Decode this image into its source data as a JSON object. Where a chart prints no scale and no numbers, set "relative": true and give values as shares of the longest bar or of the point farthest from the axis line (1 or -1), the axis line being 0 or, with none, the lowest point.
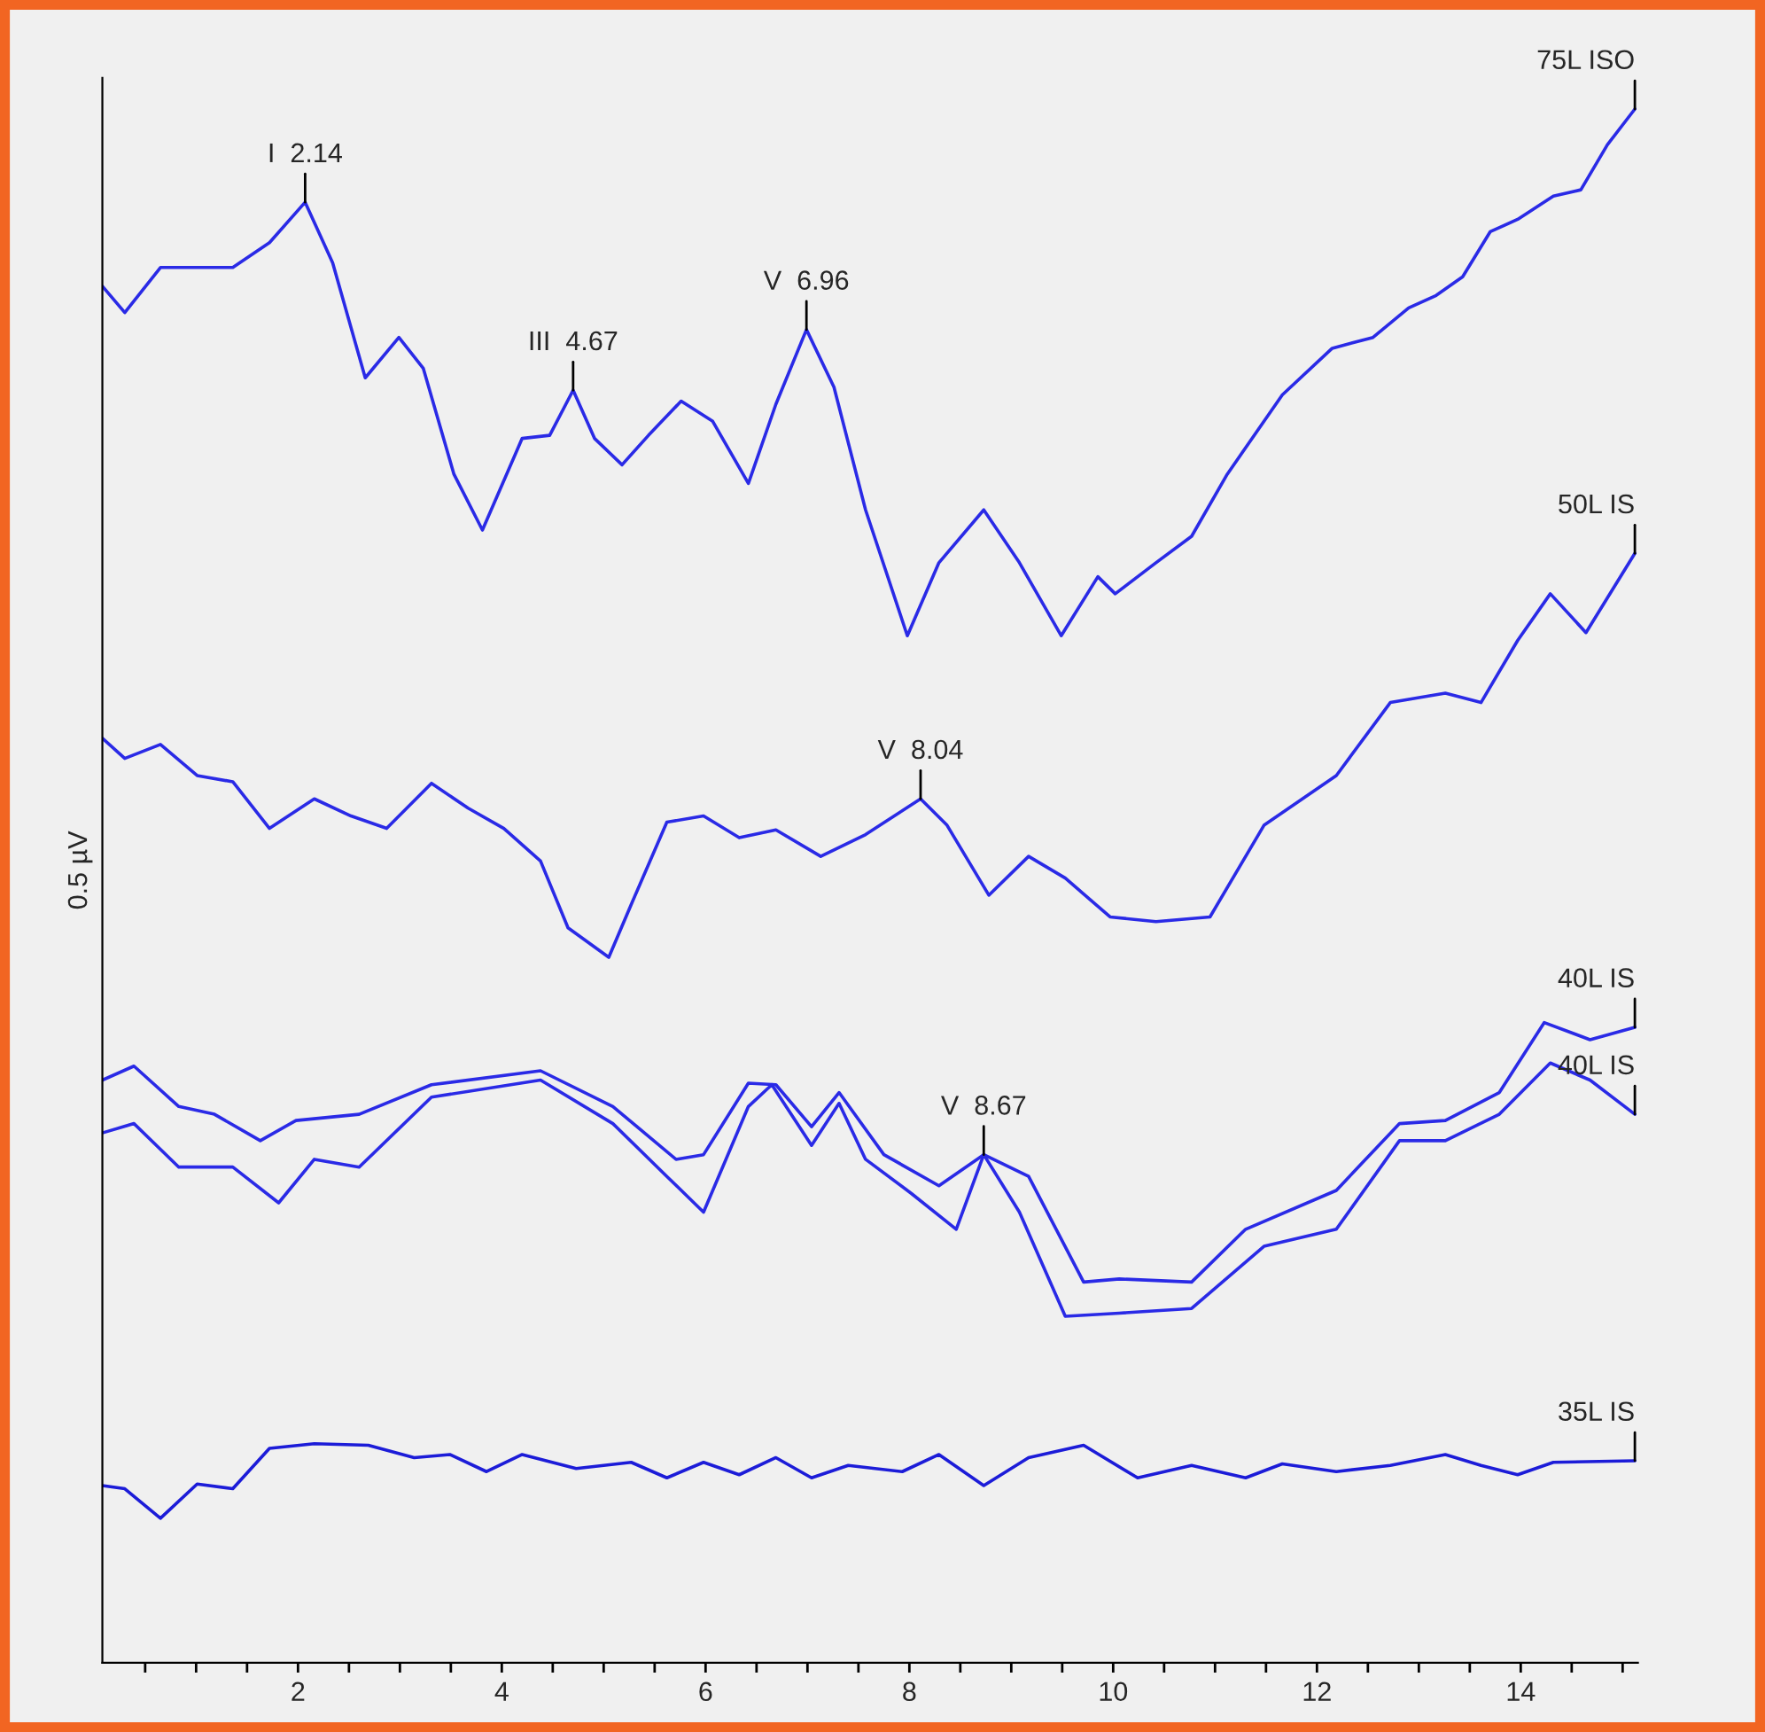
{
  "chart_data": {
    "type": "line",
    "relative": true,
    "ylabel": "0.5 µV",
    "xlim": [
      0.08,
      15.15
    ],
    "xticks": [
      {
        "value": 0.5,
        "label": null
      },
      {
        "value": 1,
        "label": null
      },
      {
        "value": 1.5,
        "label": null
      },
      2,
      {
        "value": 2.5,
        "label": null
      },
      {
        "value": 3,
        "label": null
      },
      {
        "value": 3.5,
        "label": null
      },
      4,
      {
        "value": 4.5,
        "label": null
      },
      {
        "value": 5,
        "label": null
      },
      {
        "value": 5.5,
        "label": null
      },
      6,
      {
        "value": 6.5,
        "label": null
      },
      {
        "value": 7,
        "label": null
      },
      {
        "value": 7.5,
        "label": null
      },
      8,
      {
        "value": 8.5,
        "label": null
      },
      {
        "value": 9,
        "label": null
      },
      {
        "value": 9.5,
        "label": null
      },
      10,
      {
        "value": 10.5,
        "label": null
      },
      {
        "value": 11,
        "label": null
      },
      {
        "value": 11.5,
        "label": null
      },
      12,
      {
        "value": 12.5,
        "label": null
      },
      {
        "value": 13,
        "label": null
      },
      {
        "value": 13.5,
        "label": null
      },
      14,
      {
        "value": 14.5,
        "label": null
      },
      {
        "value": 15,
        "label": null
      }
    ],
    "tick_labels": "x",
    "grid": false,
    "legend": false,
    "marker": "none",
    "line_style": "solid",
    "series": [
      {
        "name": "75L ISO",
        "color": "#2a2ae6",
        "x": [
          0.08,
          0.3,
          0.65,
          1.36,
          1.72,
          2.07,
          2.34,
          2.66,
          2.99,
          3.23,
          3.53,
          3.81,
          4.2,
          4.47,
          4.7,
          4.91,
          5.18,
          5.44,
          5.76,
          6.07,
          6.42,
          6.69,
          6.99,
          7.26,
          7.57,
          7.98,
          8.29,
          8.73,
          9.08,
          9.49,
          9.85,
          10.02,
          10.42,
          10.77,
          11.12,
          11.66,
          12.15,
          12.55,
          12.9,
          13.17,
          13.43,
          13.7,
          13.97,
          14.32,
          14.59,
          14.85,
          15.12
        ],
        "values": [
          0.886,
          0.869,
          0.898,
          0.898,
          0.914,
          0.94,
          0.901,
          0.827,
          0.853,
          0.833,
          0.765,
          0.729,
          0.788,
          0.79,
          0.819,
          0.788,
          0.771,
          0.79,
          0.812,
          0.799,
          0.759,
          0.81,
          0.858,
          0.821,
          0.742,
          0.661,
          0.708,
          0.742,
          0.708,
          0.661,
          0.699,
          0.688,
          0.708,
          0.725,
          0.765,
          0.816,
          0.846,
          0.853,
          0.872,
          0.88,
          0.892,
          0.921,
          0.929,
          0.944,
          0.948,
          0.977,
          1.0
        ]
      },
      {
        "name": "50L IS",
        "color": "#2a2ae6",
        "x": [
          0.08,
          0.3,
          0.65,
          1.01,
          1.36,
          1.72,
          2.16,
          2.52,
          2.87,
          3.31,
          3.67,
          4.02,
          4.38,
          4.65,
          5.05,
          5.27,
          5.62,
          5.98,
          6.33,
          6.69,
          7.13,
          7.57,
          8.11,
          8.37,
          8.78,
          9.17,
          9.53,
          9.97,
          10.42,
          10.95,
          11.48,
          12.19,
          12.72,
          13.26,
          13.61,
          13.97,
          14.29,
          14.64,
          15.12
        ],
        "values": [
          0.595,
          0.582,
          0.591,
          0.571,
          0.567,
          0.537,
          0.556,
          0.545,
          0.537,
          0.566,
          0.55,
          0.537,
          0.516,
          0.473,
          0.454,
          0.488,
          0.541,
          0.545,
          0.531,
          0.536,
          0.519,
          0.533,
          0.556,
          0.539,
          0.494,
          0.519,
          0.505,
          0.48,
          0.477,
          0.48,
          0.539,
          0.571,
          0.618,
          0.624,
          0.618,
          0.658,
          0.688,
          0.663,
          0.714
        ]
      },
      {
        "name": "40L IS",
        "color": "#2a2ae6",
        "x": [
          0.08,
          0.39,
          0.83,
          1.18,
          1.63,
          1.98,
          2.6,
          3.31,
          4.38,
          5.09,
          5.71,
          5.98,
          6.42,
          6.69,
          7.04,
          7.31,
          7.75,
          8.29,
          8.73,
          9.17,
          9.71,
          10.06,
          10.77,
          11.3,
          12.19,
          12.81,
          13.26,
          13.79,
          14.23,
          14.68,
          15.12
        ],
        "values": [
          0.375,
          0.384,
          0.358,
          0.353,
          0.336,
          0.349,
          0.353,
          0.372,
          0.381,
          0.358,
          0.324,
          0.327,
          0.373,
          0.372,
          0.345,
          0.367,
          0.327,
          0.307,
          0.327,
          0.313,
          0.245,
          0.247,
          0.245,
          0.279,
          0.304,
          0.347,
          0.349,
          0.367,
          0.412,
          0.401,
          0.409
        ]
      },
      {
        "name": "40L IS",
        "color": "#2a2ae6",
        "x": [
          0.08,
          0.39,
          0.83,
          1.36,
          1.81,
          2.16,
          2.6,
          3.31,
          4.38,
          5.09,
          5.62,
          5.98,
          6.42,
          6.65,
          7.04,
          7.31,
          7.57,
          8.02,
          8.46,
          8.73,
          9.08,
          9.53,
          10.06,
          10.77,
          11.48,
          12.19,
          12.81,
          13.26,
          13.79,
          14.29,
          14.68,
          15.12
        ],
        "values": [
          0.341,
          0.347,
          0.319,
          0.319,
          0.296,
          0.324,
          0.319,
          0.364,
          0.375,
          0.347,
          0.313,
          0.29,
          0.358,
          0.372,
          0.333,
          0.36,
          0.324,
          0.302,
          0.279,
          0.327,
          0.29,
          0.223,
          0.225,
          0.228,
          0.268,
          0.279,
          0.336,
          0.336,
          0.353,
          0.386,
          0.375,
          0.353
        ]
      },
      {
        "name": "35L IS",
        "color": "#1c1cd8",
        "x": [
          0.08,
          0.3,
          0.65,
          1.01,
          1.36,
          1.72,
          2.16,
          2.69,
          3.14,
          3.49,
          3.85,
          4.2,
          4.73,
          5.27,
          5.62,
          5.98,
          6.33,
          6.69,
          7.04,
          7.4,
          7.93,
          8.29,
          8.73,
          9.17,
          9.71,
          10.24,
          10.77,
          11.3,
          11.66,
          12.19,
          12.72,
          13.26,
          13.61,
          13.97,
          14.32,
          15.12
        ],
        "values": [
          0.114,
          0.112,
          0.093,
          0.115,
          0.112,
          0.138,
          0.141,
          0.14,
          0.132,
          0.134,
          0.123,
          0.134,
          0.125,
          0.129,
          0.119,
          0.129,
          0.121,
          0.132,
          0.119,
          0.127,
          0.123,
          0.134,
          0.114,
          0.132,
          0.14,
          0.119,
          0.127,
          0.119,
          0.128,
          0.123,
          0.127,
          0.134,
          0.127,
          0.121,
          0.129,
          0.13
        ]
      }
    ],
    "annotations": [
      {
        "text": "I  2.14",
        "x": 2.07,
        "y": 0.94
      },
      {
        "text": "III  4.67",
        "x": 4.7,
        "y": 0.819
      },
      {
        "text": "V  6.96",
        "x": 6.99,
        "y": 0.858
      },
      {
        "text": "V  8.04",
        "x": 8.11,
        "y": 0.556
      },
      {
        "text": "V  8.67",
        "x": 8.73,
        "y": 0.327
      }
    ]
  }
}
